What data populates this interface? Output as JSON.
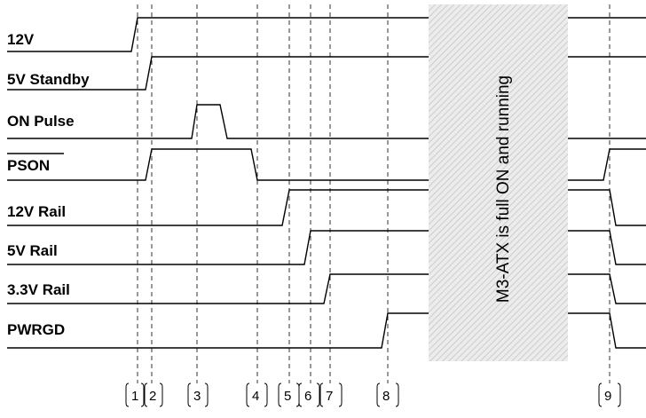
{
  "signals": [
    {
      "id": "12v",
      "label": "12V",
      "overline": false
    },
    {
      "id": "5v-standby",
      "label": "5V Standby",
      "overline": false
    },
    {
      "id": "on-pulse",
      "label": "ON Pulse",
      "overline": false
    },
    {
      "id": "pson",
      "label": "PSON",
      "overline": true
    },
    {
      "id": "12v-rail",
      "label": "12V Rail",
      "overline": false
    },
    {
      "id": "5v-rail",
      "label": "5V Rail",
      "overline": false
    },
    {
      "id": "3v3-rail",
      "label": "3.3V Rail",
      "overline": false
    },
    {
      "id": "pwrgd",
      "label": "PWRGD",
      "overline": false
    }
  ],
  "banner": {
    "text": "M3-ATX is full ON and running"
  },
  "markers": [
    "1",
    "2",
    "3",
    "4",
    "5",
    "6",
    "7",
    "8",
    "9"
  ]
}
